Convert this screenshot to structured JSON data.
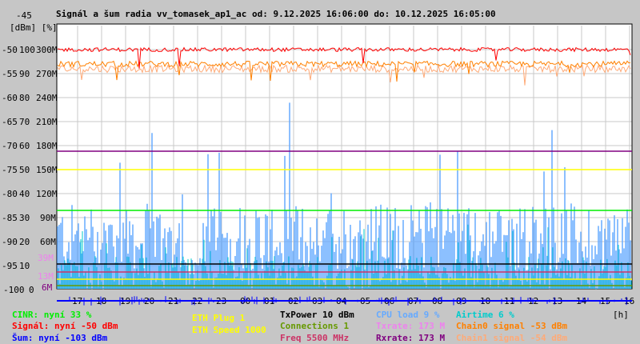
{
  "chart_data": {
    "type": "line",
    "title": "Signál a šum radia vv_tomasek_ap1_ac od: 9.12.2025 16:06:00 do: 10.12.2025 16:05:00",
    "y_units_label": "[dBm] [%]",
    "y_top_label": "-45",
    "ylim_dbm": [
      -100,
      -45
    ],
    "y_ticks": [
      {
        "dbm": -50,
        "pct": "100",
        "rate": "300M"
      },
      {
        "dbm": -55,
        "pct": "90",
        "rate": "270M"
      },
      {
        "dbm": -60,
        "pct": "80",
        "rate": "240M"
      },
      {
        "dbm": -65,
        "pct": "70",
        "rate": "210M"
      },
      {
        "dbm": -70,
        "pct": "60",
        "rate": "180M"
      },
      {
        "dbm": -75,
        "pct": "50",
        "rate": "150M"
      },
      {
        "dbm": -80,
        "pct": "40",
        "rate": "120M"
      },
      {
        "dbm": -85,
        "pct": "30",
        "rate": "90M"
      },
      {
        "dbm": -90,
        "pct": "20",
        "rate": "60M"
      },
      {
        "dbm": -95,
        "pct": "10",
        "rate": ""
      },
      {
        "dbm": -100,
        "pct": "0",
        "rate": ""
      }
    ],
    "extra_rate_ticks": [
      {
        "label": "39M",
        "color": "#ee82ee"
      },
      {
        "label": "13M",
        "color": "#ee82ee"
      },
      {
        "label": "6M",
        "color": "#800080"
      }
    ],
    "x_ticks": [
      "17",
      "18",
      "19",
      "20",
      "21",
      "22",
      "23",
      "00",
      "01",
      "02",
      "03",
      "04",
      "05",
      "06",
      "07",
      "08",
      "09",
      "10",
      "11",
      "12",
      "13",
      "14",
      "15",
      "16"
    ],
    "x_unit": "[h]",
    "grid": true,
    "series_levels": {
      "signal_dbm": -50,
      "chain0_dbm": -53,
      "chain1_dbm": -54,
      "noise_dbm": -103,
      "cinr_pct": 33,
      "cpu_pct_typical": 25,
      "airtime_pct_typical": 6,
      "rxrate_M": 173,
      "yellow_line_pct": 50
    }
  },
  "legend": {
    "cinr": "CINR: nyní 33 %",
    "signal": "Signál: nyní -50 dBm",
    "noise": "Šum: nyní -103 dBm",
    "eth_plug": "ETH Plug 1",
    "eth_speed": "ETH Speed 1000",
    "txpower": "TxPower 10 dBm",
    "connections": "Connections 1",
    "freq": "Freq 5500 MHz",
    "cpu": "CPU load 9 %",
    "txrate": "Txrate: 173 M",
    "rxrate": "Rxrate: 173 M",
    "airtime": "Airtime 6 %",
    "chain0": "Chain0 signal -53 dBm",
    "chain1": "Chain1 signal -54 dBm"
  },
  "colors": {
    "cinr": "#00ee00",
    "signal": "#ff0000",
    "noise": "#0000ff",
    "eth": "#ffff00",
    "txpower": "#000000",
    "connections": "#669900",
    "freq": "#cc3366",
    "cpu": "#66aaff",
    "airtime": "#00cccc",
    "txrate": "#ee82ee",
    "rxrate": "#800080",
    "chain0": "#ff8000",
    "chain1": "#ffaa77"
  }
}
